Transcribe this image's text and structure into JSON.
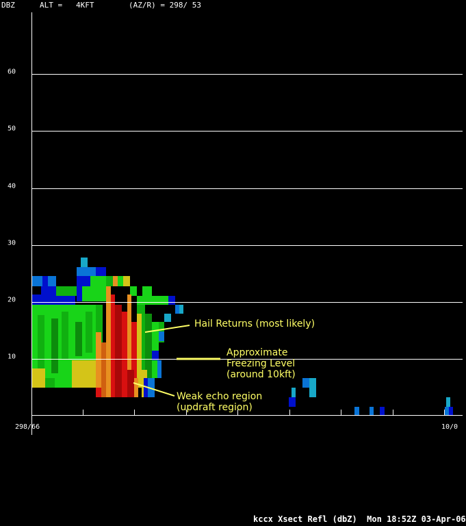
{
  "header": {
    "units": "DBZ",
    "alt": "ALT =   4KFT",
    "azr": "(AZ/R) = 298/ 53"
  },
  "chart_data": {
    "type": "heatmap",
    "title": "kccx Xsect Refl (dbZ)",
    "ylabel": "DBZ",
    "y_ticks": [
      10,
      20,
      30,
      40,
      50,
      60
    ],
    "ylim": [
      0,
      70
    ],
    "x_start_label": "298/66",
    "x_end_label": "10/0",
    "grid": true,
    "legend": "none",
    "annotations": [
      {
        "id": "hail",
        "text": "Hail Returns (most likely)"
      },
      {
        "id": "freezing",
        "text": "Approximate\nFreezing Level\n(around 10kft)"
      },
      {
        "id": "wer",
        "text": "Weak echo region\n(updraft region)"
      }
    ],
    "colors": {
      "dark_blue": "#0010cc",
      "blue": "#0a74d6",
      "cyan": "#18a8c8",
      "light_green": "#18d418",
      "green": "#10b010",
      "dark_green": "#0c8c0c",
      "yellow": "#d4c418",
      "orange": "#e89020",
      "dark_orange": "#d06010",
      "red": "#d81010",
      "dark_red": "#a80808",
      "annotation": "#ffff66"
    }
  },
  "footer": {
    "label": "kccx Xsect Refl (dbZ)  Mon 18:52Z 03-Apr-06"
  }
}
